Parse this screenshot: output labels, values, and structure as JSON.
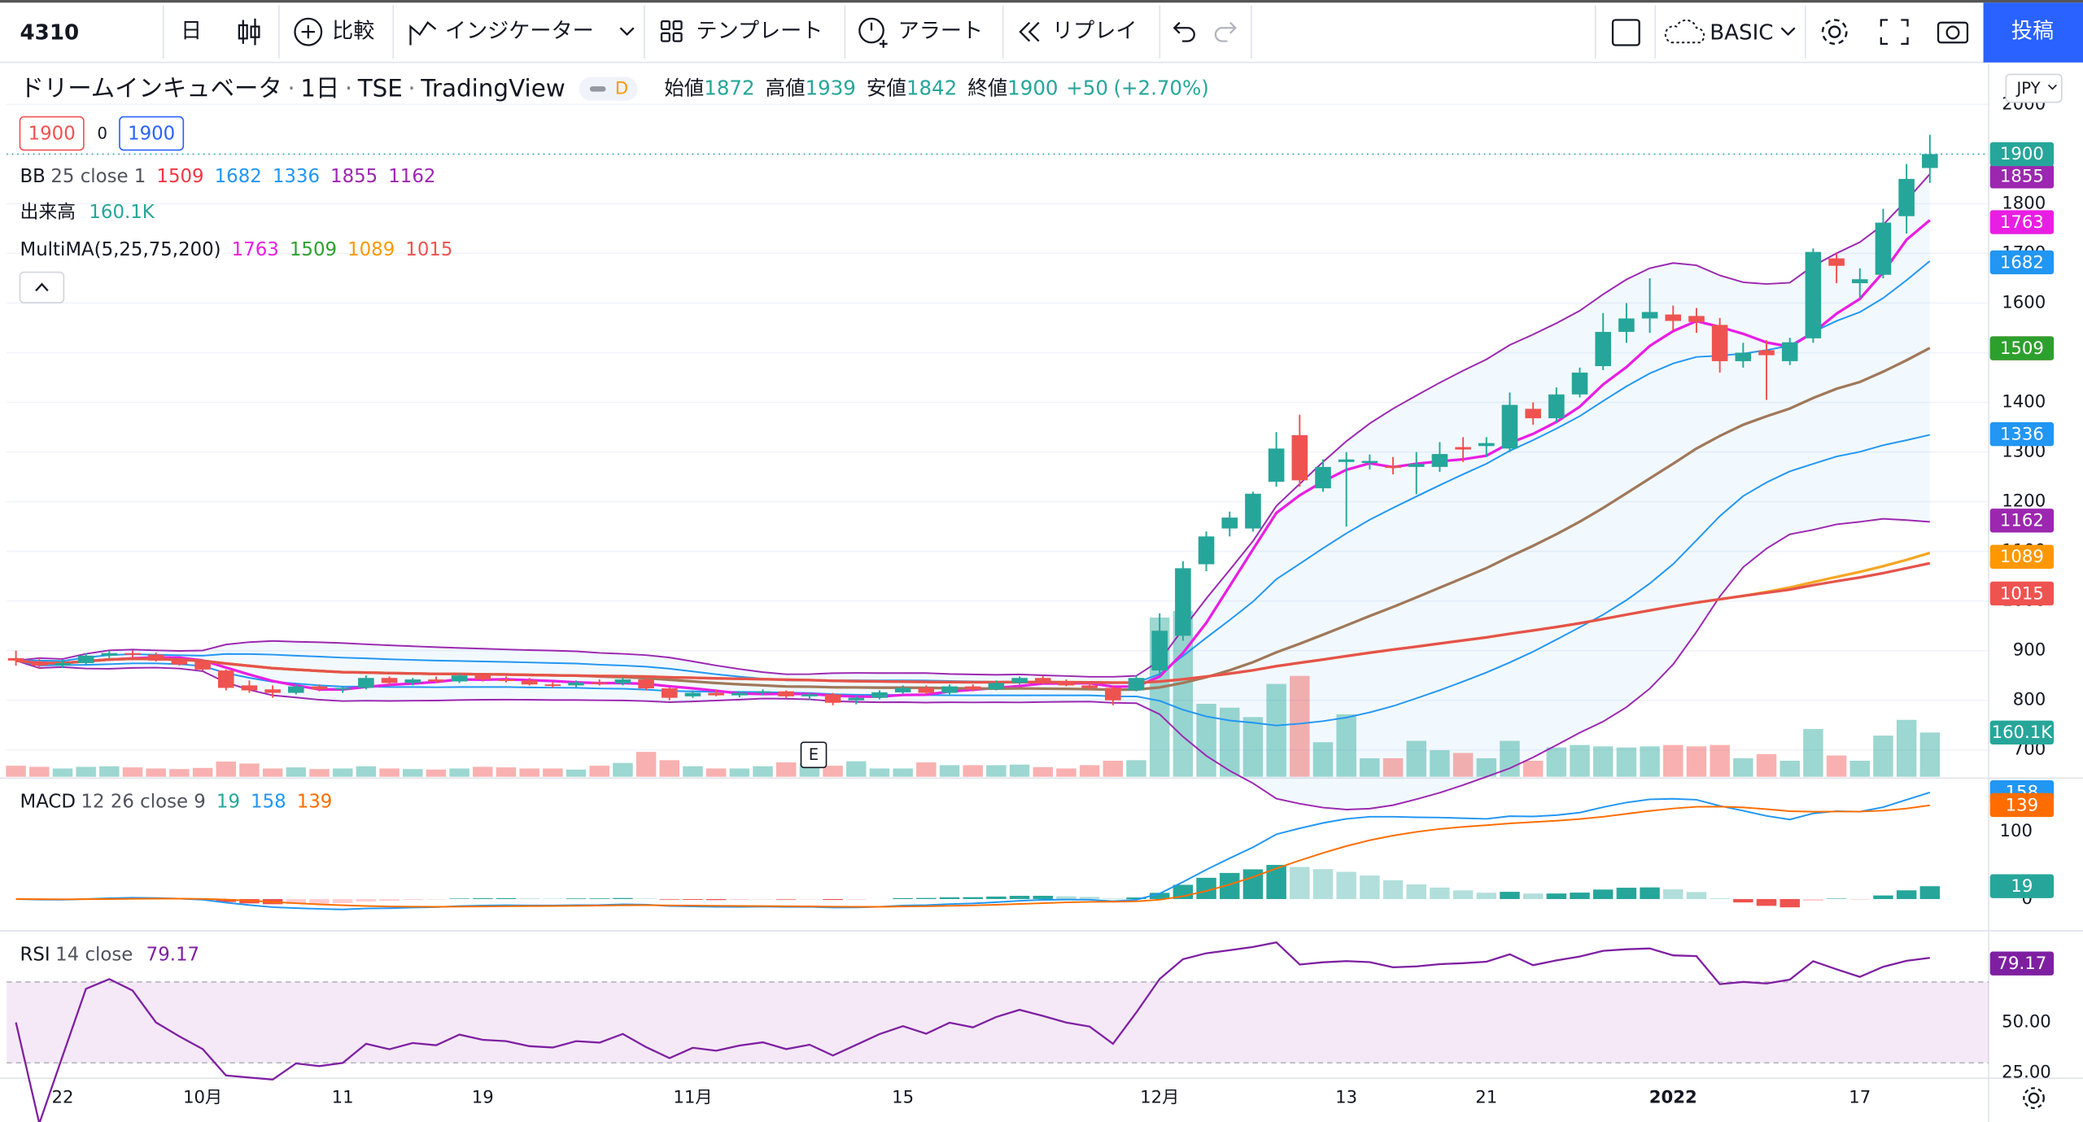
{
  "toolbar": {
    "symbol": "4310",
    "interval": "日",
    "compare": "比較",
    "indicators": "インジケーター",
    "templates": "テンプレート",
    "alert": "アラート",
    "replay": "リプレイ",
    "layout": "BASIC",
    "publish": "投稿"
  },
  "chart_data": {
    "type": "candlestick",
    "title": "ドリームインキュベータ",
    "interval": "1日",
    "exchange": "TSE",
    "source": "TradingView",
    "badge": "D",
    "open": {
      "label": "始値",
      "value": 1872
    },
    "high": {
      "label": "高値",
      "value": 1939
    },
    "low": {
      "label": "安値",
      "value": 1842
    },
    "close": {
      "label": "終値",
      "value": 1900
    },
    "change": {
      "value": 50,
      "label": "+50"
    },
    "change_pct": {
      "value": 2.7,
      "label": "(+2.70%)"
    },
    "bid": 1900,
    "spread": 0,
    "ask": 1900,
    "currency": "JPY",
    "event_marker": "E",
    "colors": {
      "up": "#26a69a",
      "down": "#ef5350"
    },
    "x": [
      null,
      null,
      "22",
      null,
      null,
      null,
      null,
      null,
      "10月",
      null,
      null,
      null,
      null,
      null,
      "11",
      null,
      null,
      null,
      null,
      null,
      "19",
      null,
      null,
      null,
      null,
      null,
      null,
      null,
      null,
      "11月",
      null,
      null,
      null,
      null,
      null,
      null,
      null,
      null,
      "15",
      null,
      null,
      null,
      null,
      null,
      null,
      null,
      null,
      null,
      null,
      "12月",
      null,
      null,
      null,
      null,
      null,
      null,
      null,
      "13",
      null,
      null,
      null,
      null,
      null,
      "21",
      null,
      null,
      null,
      null,
      null,
      null,
      null,
      "2022",
      null,
      null,
      null,
      null,
      null,
      null,
      null,
      "17",
      null,
      null,
      null
    ],
    "candles": [
      [
        885,
        900,
        870,
        880
      ],
      [
        878,
        885,
        865,
        870
      ],
      [
        870,
        882,
        865,
        875
      ],
      [
        875,
        895,
        872,
        890
      ],
      [
        890,
        900,
        885,
        895
      ],
      [
        895,
        900,
        885,
        892
      ],
      [
        892,
        896,
        878,
        880
      ],
      [
        880,
        885,
        870,
        872
      ],
      [
        878,
        880,
        860,
        862
      ],
      [
        860,
        862,
        820,
        825
      ],
      [
        830,
        840,
        815,
        820
      ],
      [
        822,
        830,
        805,
        815
      ],
      [
        815,
        832,
        812,
        828
      ],
      [
        828,
        832,
        818,
        822
      ],
      [
        822,
        828,
        815,
        825
      ],
      [
        825,
        850,
        822,
        845
      ],
      [
        845,
        848,
        830,
        835
      ],
      [
        835,
        845,
        830,
        842
      ],
      [
        842,
        848,
        835,
        838
      ],
      [
        838,
        855,
        835,
        850
      ],
      [
        850,
        852,
        838,
        842
      ],
      [
        842,
        848,
        836,
        840
      ],
      [
        840,
        845,
        830,
        832
      ],
      [
        832,
        836,
        825,
        830
      ],
      [
        830,
        840,
        826,
        836
      ],
      [
        836,
        842,
        830,
        834
      ],
      [
        834,
        846,
        830,
        842
      ],
      [
        842,
        845,
        820,
        824
      ],
      [
        824,
        826,
        800,
        805
      ],
      [
        808,
        820,
        805,
        815
      ],
      [
        815,
        822,
        808,
        810
      ],
      [
        810,
        818,
        806,
        815
      ],
      [
        815,
        822,
        810,
        818
      ],
      [
        818,
        820,
        805,
        808
      ],
      [
        808,
        815,
        800,
        812
      ],
      [
        812,
        815,
        790,
        795
      ],
      [
        800,
        808,
        792,
        805
      ],
      [
        805,
        820,
        802,
        816
      ],
      [
        816,
        830,
        812,
        825
      ],
      [
        825,
        830,
        812,
        815
      ],
      [
        815,
        832,
        812,
        828
      ],
      [
        828,
        832,
        818,
        822
      ],
      [
        822,
        840,
        820,
        835
      ],
      [
        835,
        848,
        832,
        845
      ],
      [
        845,
        850,
        832,
        838
      ],
      [
        838,
        842,
        828,
        830
      ],
      [
        830,
        835,
        820,
        825
      ],
      [
        825,
        828,
        790,
        800
      ],
      [
        820,
        850,
        818,
        845
      ],
      [
        860,
        975,
        850,
        940
      ],
      [
        930,
        1080,
        920,
        1066
      ],
      [
        1074,
        1140,
        1060,
        1130
      ],
      [
        1146,
        1180,
        1130,
        1168
      ],
      [
        1146,
        1220,
        1140,
        1216
      ],
      [
        1240,
        1340,
        1230,
        1307
      ],
      [
        1334,
        1375,
        1230,
        1243
      ],
      [
        1227,
        1285,
        1220,
        1270
      ],
      [
        1280,
        1300,
        1150,
        1285
      ],
      [
        1278,
        1295,
        1265,
        1282
      ],
      [
        1272,
        1290,
        1255,
        1268
      ],
      [
        1270,
        1300,
        1215,
        1276
      ],
      [
        1270,
        1320,
        1260,
        1296
      ],
      [
        1310,
        1330,
        1280,
        1305
      ],
      [
        1312,
        1330,
        1290,
        1318
      ],
      [
        1307,
        1420,
        1300,
        1395
      ],
      [
        1387,
        1400,
        1355,
        1368
      ],
      [
        1368,
        1430,
        1360,
        1416
      ],
      [
        1416,
        1470,
        1410,
        1460
      ],
      [
        1473,
        1580,
        1465,
        1542
      ],
      [
        1542,
        1600,
        1520,
        1569
      ],
      [
        1569,
        1650,
        1540,
        1582
      ],
      [
        1577,
        1595,
        1545,
        1564
      ],
      [
        1574,
        1590,
        1540,
        1562
      ],
      [
        1556,
        1570,
        1460,
        1483
      ],
      [
        1483,
        1520,
        1470,
        1500
      ],
      [
        1505,
        1525,
        1405,
        1495
      ],
      [
        1483,
        1530,
        1475,
        1521
      ],
      [
        1529,
        1710,
        1520,
        1703
      ],
      [
        1690,
        1700,
        1640,
        1675
      ],
      [
        1640,
        1670,
        1610,
        1648
      ],
      [
        1657,
        1790,
        1650,
        1762
      ],
      [
        1775,
        1880,
        1740,
        1850
      ],
      [
        1872,
        1939,
        1842,
        1900
      ]
    ],
    "volumes": [
      40,
      36,
      30,
      36,
      38,
      34,
      30,
      28,
      32,
      55,
      48,
      30,
      34,
      28,
      30,
      38,
      30,
      28,
      26,
      30,
      36,
      34,
      30,
      30,
      26,
      40,
      50,
      90,
      60,
      38,
      30,
      30,
      38,
      52,
      48,
      40,
      56,
      30,
      30,
      52,
      42,
      42,
      42,
      44,
      35,
      30,
      42,
      58,
      60,
      576,
      600,
      264,
      250,
      216,
      336,
      365,
      125,
      226,
      67,
      67,
      130,
      96,
      86,
      67,
      130,
      58,
      106,
      115,
      110,
      106,
      110,
      115,
      110,
      115,
      67,
      82,
      58,
      173,
      77,
      58,
      149,
      206,
      160.1
    ],
    "ylim": [
      646,
      2082
    ],
    "yticks": [
      700,
      800,
      900,
      1000,
      1100,
      1200,
      1300,
      1400,
      1500,
      1600,
      1700,
      1800,
      1900,
      2000
    ],
    "volume_ylim": [
      0,
      2580
    ],
    "indicators": {
      "bb": {
        "name": "BB",
        "params": "25 close 1",
        "values": [
          1509,
          1682,
          1336,
          1855,
          1162
        ],
        "colors": [
          "#f23645",
          "#2196f3",
          "#2196f3",
          "#9c27b0",
          "#9c27b0"
        ]
      },
      "volume": {
        "name": "出来高",
        "value": {
          "value": 160.1,
          "label": "160.1K"
        },
        "color": "#26a69a"
      },
      "multima": {
        "name": "MultiMA(5,25,75,200)",
        "periods": [
          5,
          25,
          75,
          200
        ],
        "values": [
          1763,
          1509,
          1089,
          1015
        ],
        "colors": [
          "#e91ee3",
          "#2ca02c",
          "#ff9800",
          "#ef5350"
        ],
        "line_colors": [
          "#e91ee3",
          "#a0785a",
          "#f5a623",
          "#e5534b"
        ]
      },
      "macd": {
        "name": "MACD",
        "params": "12 26 close 9",
        "values": [
          19,
          158,
          139
        ],
        "colors": [
          "#26a69a",
          "#2196f3",
          "#ff6d00"
        ],
        "ylim": [
          -45,
          175
        ],
        "yticks": [
          0,
          100
        ]
      },
      "rsi": {
        "name": "RSI",
        "params": "14 close",
        "value": 79.17,
        "color": "#7e1fa1",
        "ylim": [
          22.4,
          94.7
        ],
        "yticks": [
          {
            "value": 50,
            "label": "50.00"
          },
          {
            "value": 25,
            "label": "25.00"
          }
        ],
        "band": [
          30,
          70
        ]
      }
    }
  }
}
